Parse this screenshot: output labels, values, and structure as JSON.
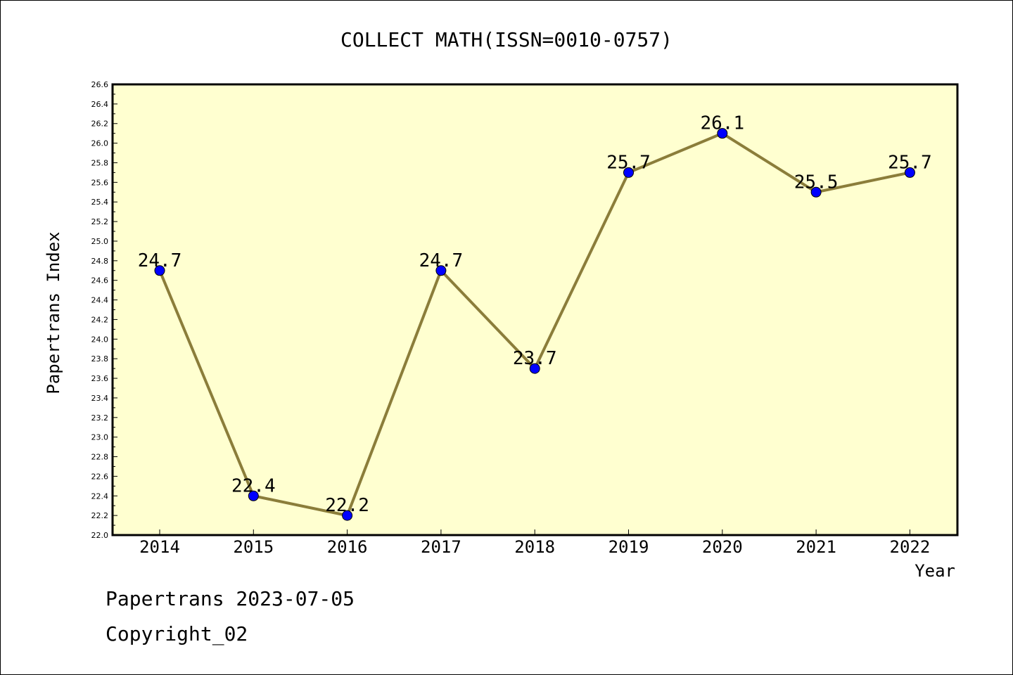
{
  "chart_data": {
    "type": "line",
    "title": "COLLECT MATH(ISSN=0010-0757)",
    "xlabel": "Year",
    "ylabel": "Papertrans Index",
    "categories": [
      "2014",
      "2015",
      "2016",
      "2017",
      "2018",
      "2019",
      "2020",
      "2021",
      "2022"
    ],
    "values": [
      24.7,
      22.4,
      22.2,
      24.7,
      23.7,
      25.7,
      26.1,
      25.5,
      25.7
    ],
    "data_labels": [
      "24.7",
      "22.4",
      "22.2",
      "24.7",
      "23.7",
      "25.7",
      "26.1",
      "25.5",
      "25.7"
    ],
    "ylim": [
      22.0,
      26.6
    ],
    "yticks": [
      "22.0",
      "22.2",
      "22.4",
      "22.6",
      "22.8",
      "23.0",
      "23.2",
      "23.4",
      "23.6",
      "23.8",
      "24.0",
      "24.2",
      "24.4",
      "24.6",
      "24.8",
      "25.0",
      "25.2",
      "25.4",
      "25.6",
      "25.8",
      "26.0",
      "26.2",
      "26.4",
      "26.6"
    ],
    "grid": false,
    "colors": {
      "plot_background": "#ffffd0",
      "line": "#8b7d3a",
      "marker": "#0000ff"
    }
  },
  "footer": {
    "line1": "Papertrans 2023-07-05",
    "line2": "Copyright_02"
  }
}
